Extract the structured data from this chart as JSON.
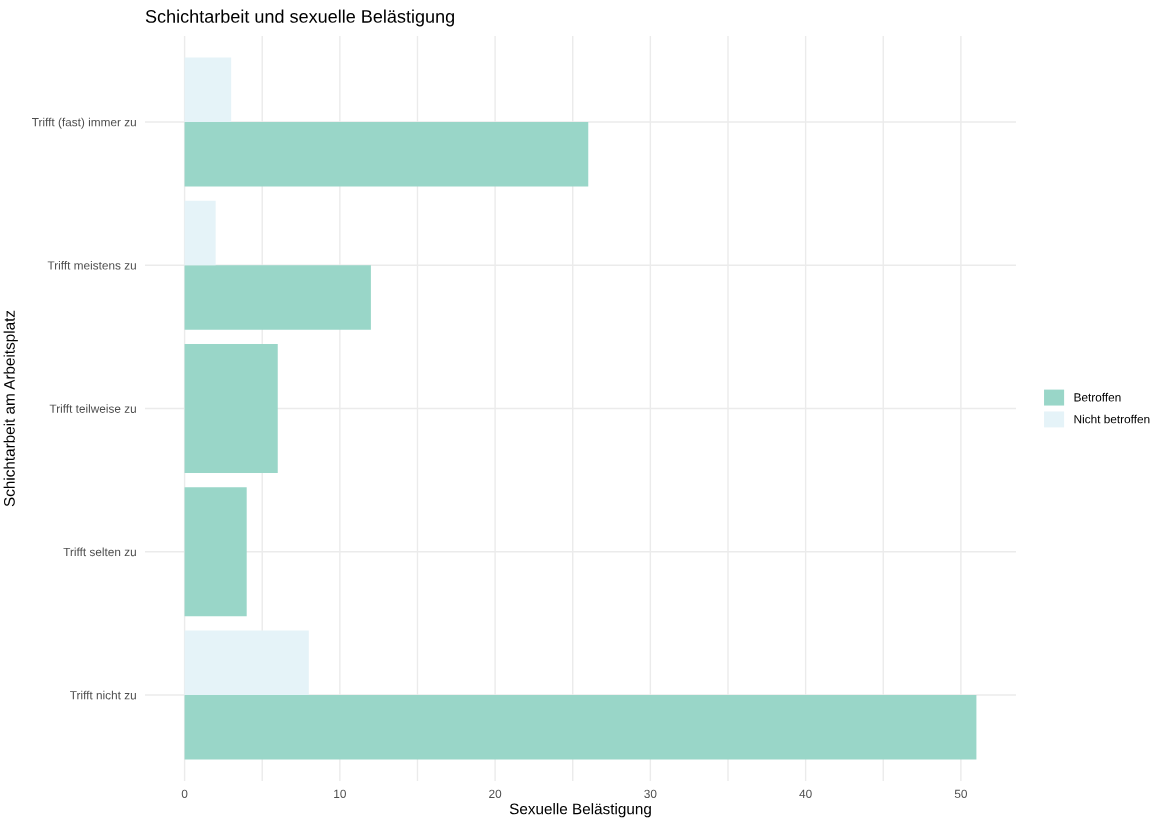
{
  "chart_data": {
    "type": "bar",
    "orientation": "horizontal",
    "title": "Schichtarbeit und sexuelle Belästigung",
    "xlabel": "Sexuelle Belästigung",
    "ylabel": "Schichtarbeit am Arbeitsplatz",
    "categories": [
      "Trifft (fast) immer zu",
      "Trifft meistens zu",
      "Trifft teilweise zu",
      "Trifft selten zu",
      "Trifft nicht zu"
    ],
    "series": [
      {
        "name": "Betroffen",
        "color": "#99d6c8",
        "values": [
          26,
          12,
          6,
          4,
          51
        ]
      },
      {
        "name": "Nicht betroffen",
        "color": "#e5f3f8",
        "values": [
          3,
          2,
          null,
          null,
          8
        ]
      }
    ],
    "xlim": [
      -2.55,
      53.55
    ],
    "xticks": [
      0,
      {
        "value": 5,
        "label": null
      },
      10,
      {
        "value": 15,
        "label": null
      },
      20,
      {
        "value": 25,
        "label": null
      },
      30,
      {
        "value": 35,
        "label": null
      },
      40,
      {
        "value": 45,
        "label": null
      },
      50
    ],
    "grid": true,
    "legend": "right"
  }
}
